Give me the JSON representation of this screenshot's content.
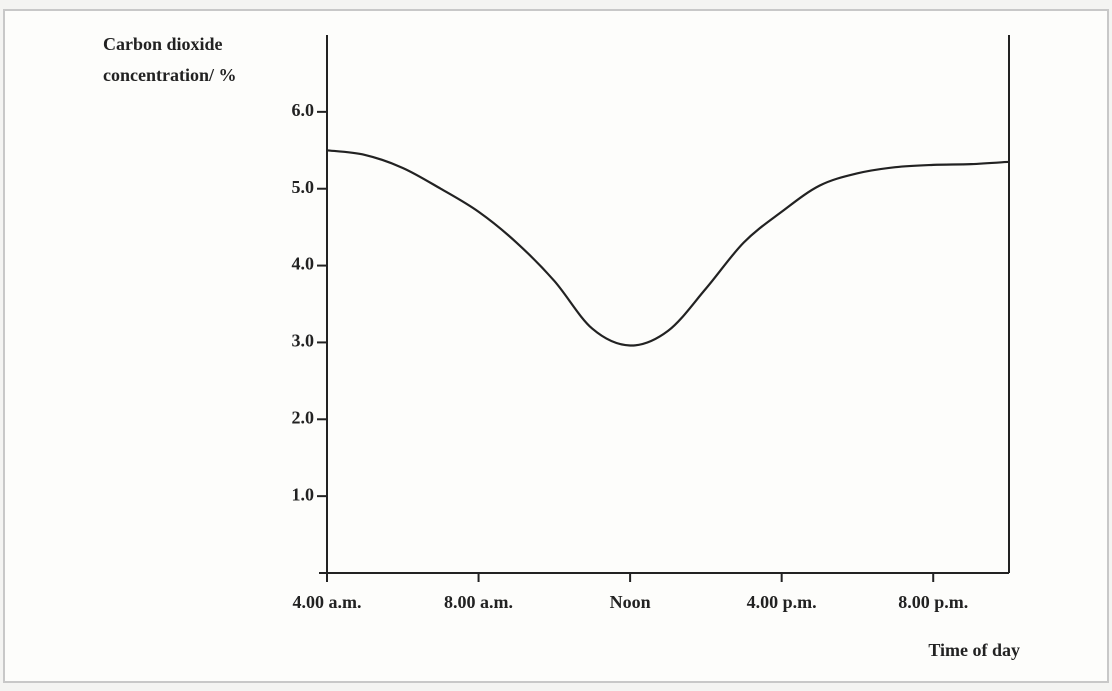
{
  "chart_data": {
    "type": "line",
    "ylabel": [
      "Carbon dioxide",
      "concentration/ %"
    ],
    "xlabel": "Time of day",
    "x": [
      4,
      5,
      6,
      7,
      8,
      9,
      10,
      11,
      12,
      13,
      14,
      15,
      16,
      17,
      18,
      19,
      20,
      21,
      22
    ],
    "values": [
      5.5,
      5.44,
      5.27,
      5.0,
      4.7,
      4.3,
      3.8,
      3.18,
      2.96,
      3.15,
      3.7,
      4.3,
      4.7,
      5.04,
      5.2,
      5.28,
      5.31,
      5.32,
      5.35
    ],
    "color": "#222222",
    "xlim": [
      4,
      22
    ],
    "xticks": [
      {
        "value": 4,
        "label": "4.00 a.m."
      },
      {
        "value": 8,
        "label": "8.00 a.m."
      },
      {
        "value": 12,
        "label": "Noon"
      },
      {
        "value": 16,
        "label": "4.00 p.m."
      },
      {
        "value": 20,
        "label": "8.00 p.m."
      }
    ],
    "ylim": [
      0,
      7
    ],
    "yticks": [
      {
        "value": 1,
        "label": "1.0"
      },
      {
        "value": 2,
        "label": "2.0"
      },
      {
        "value": 3,
        "label": "3.0"
      },
      {
        "value": 4,
        "label": "4.0"
      },
      {
        "value": 5,
        "label": "5.0"
      },
      {
        "value": 6,
        "label": "6.0"
      }
    ],
    "grid": false
  }
}
